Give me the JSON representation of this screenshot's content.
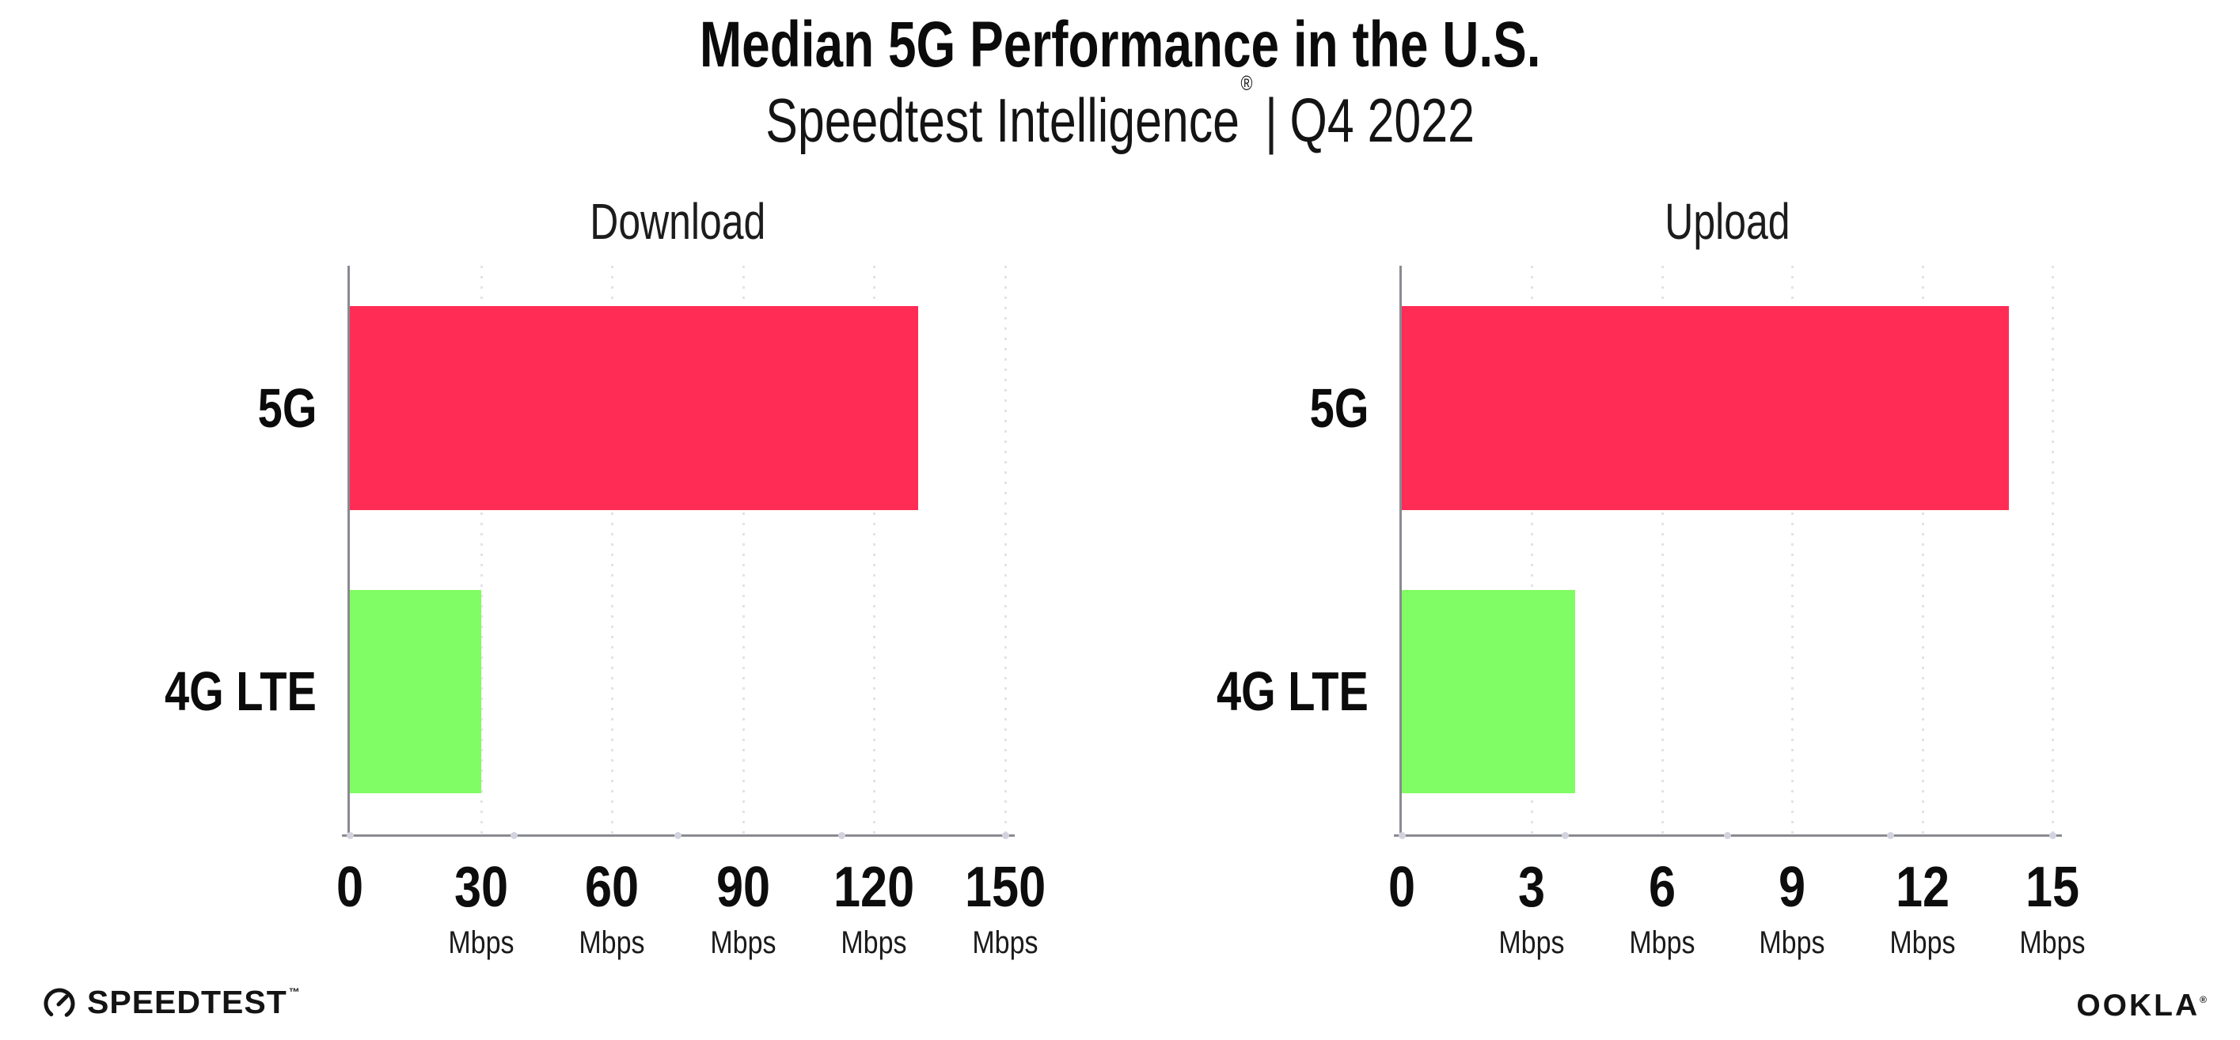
{
  "header": {
    "title": "Median 5G Performance in the U.S.",
    "subtitle_brand": "Speedtest Intelligence",
    "subtitle_reg": "®",
    "subtitle_separator": "|",
    "subtitle_period": "Q4 2022"
  },
  "chart_data": [
    {
      "type": "bar",
      "orientation": "horizontal",
      "title": "Download",
      "categories": [
        "5G",
        "4G LTE"
      ],
      "values": [
        130,
        30
      ],
      "unit": "Mbps",
      "xlim": [
        0,
        150
      ],
      "ticks": [
        0,
        30,
        60,
        90,
        120,
        150
      ],
      "bar_colors": [
        "#FF2D55",
        "#80FC64"
      ],
      "grid": "dotted-vertical-gridlines",
      "legend": "none"
    },
    {
      "type": "bar",
      "orientation": "horizontal",
      "title": "Upload",
      "categories": [
        "5G",
        "4G LTE"
      ],
      "values": [
        14,
        4
      ],
      "unit": "Mbps",
      "xlim": [
        0,
        15
      ],
      "ticks": [
        0,
        3,
        6,
        9,
        12,
        15
      ],
      "bar_colors": [
        "#FF2D55",
        "#80FC64"
      ],
      "grid": "dotted-vertical-gridlines",
      "legend": "none"
    }
  ],
  "colors": {
    "bar_5g": "#FF2D55",
    "bar_4g_lte": "#80FC64",
    "axis": "#8a8a91",
    "gridline": "#e2e2ed",
    "axis_dot": "#d3d3df",
    "text": "#0c0c0c"
  },
  "footer": {
    "speedtest_icon": "gauge-icon",
    "speedtest_label": "SPEEDTEST",
    "speedtest_tm": "™",
    "ookla_label": "OOKLA",
    "ookla_reg": "®"
  }
}
